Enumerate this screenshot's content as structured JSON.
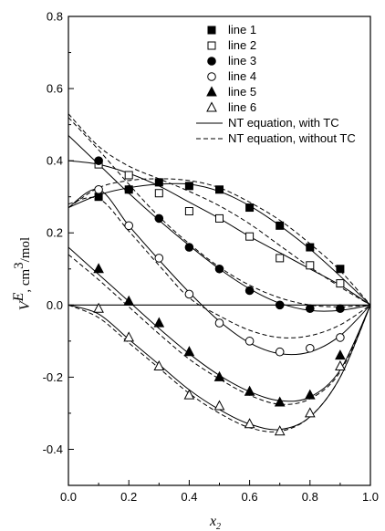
{
  "chart_data": {
    "type": "scatter",
    "xlabel": "x",
    "xlabel_sub": "2",
    "ylabel_var": "V",
    "ylabel_sup": "E",
    "ylabel_unit_pre": ", cm",
    "ylabel_unit_sup": "3",
    "ylabel_unit_post": "/mol",
    "xlim": [
      0.0,
      1.0
    ],
    "ylim": [
      -0.5,
      0.8
    ],
    "xticks": [
      "0.0",
      "0.2",
      "0.4",
      "0.6",
      "0.8",
      "1.0"
    ],
    "yticks": [
      "-0.4",
      "-0.2",
      "0.0",
      "0.2",
      "0.4",
      "0.6",
      "0.8"
    ],
    "legend_position": "top-right",
    "series": [
      {
        "name": "line 1",
        "marker": "square-filled",
        "x": [
          0.1,
          0.2,
          0.3,
          0.4,
          0.5,
          0.6,
          0.7,
          0.8,
          0.9
        ],
        "y": [
          0.3,
          0.32,
          0.34,
          0.33,
          0.32,
          0.27,
          0.22,
          0.16,
          0.1
        ]
      },
      {
        "name": "line 2",
        "marker": "square-open",
        "x": [
          0.1,
          0.2,
          0.3,
          0.4,
          0.5,
          0.6,
          0.7,
          0.8,
          0.9
        ],
        "y": [
          0.39,
          0.36,
          0.31,
          0.26,
          0.24,
          0.19,
          0.13,
          0.11,
          0.06
        ]
      },
      {
        "name": "line 3",
        "marker": "circle-filled",
        "x": [
          0.1,
          0.2,
          0.3,
          0.4,
          0.5,
          0.6,
          0.7,
          0.8,
          0.9
        ],
        "y": [
          0.4,
          0.32,
          0.24,
          0.16,
          0.1,
          0.04,
          0.0,
          -0.01,
          -0.01
        ]
      },
      {
        "name": "line 4",
        "marker": "circle-open",
        "x": [
          0.1,
          0.2,
          0.3,
          0.4,
          0.5,
          0.6,
          0.7,
          0.8,
          0.9
        ],
        "y": [
          0.32,
          0.22,
          0.13,
          0.03,
          -0.05,
          -0.1,
          -0.13,
          -0.12,
          -0.09
        ]
      },
      {
        "name": "line 5",
        "marker": "triangle-filled",
        "x": [
          0.1,
          0.2,
          0.3,
          0.4,
          0.5,
          0.6,
          0.7,
          0.8,
          0.9
        ],
        "y": [
          0.1,
          0.01,
          -0.05,
          -0.13,
          -0.2,
          -0.24,
          -0.27,
          -0.25,
          -0.14
        ]
      },
      {
        "name": "line 6",
        "marker": "triangle-open",
        "x": [
          0.1,
          0.2,
          0.3,
          0.4,
          0.5,
          0.6,
          0.7,
          0.8,
          0.9
        ],
        "y": [
          -0.01,
          -0.09,
          -0.17,
          -0.25,
          -0.28,
          -0.33,
          -0.35,
          -0.3,
          -0.17
        ]
      }
    ],
    "curves": [
      {
        "name": "NT equation, with TC",
        "style": "solid",
        "lines": [
          {
            "x": [
              0,
              0.1,
              0.2,
              0.3,
              0.4,
              0.5,
              0.6,
              0.7,
              0.8,
              0.9,
              1.0
            ],
            "y": [
              0.27,
              0.305,
              0.325,
              0.335,
              0.335,
              0.315,
              0.275,
              0.22,
              0.155,
              0.08,
              0.0
            ]
          },
          {
            "x": [
              0,
              0.1,
              0.2,
              0.3,
              0.4,
              0.5,
              0.6,
              0.7,
              0.8,
              0.9,
              1.0
            ],
            "y": [
              0.4,
              0.39,
              0.365,
              0.33,
              0.285,
              0.24,
              0.19,
              0.145,
              0.1,
              0.055,
              0.0
            ]
          },
          {
            "x": [
              0,
              0.1,
              0.2,
              0.3,
              0.4,
              0.5,
              0.6,
              0.7,
              0.8,
              0.9,
              1.0
            ],
            "y": [
              0.47,
              0.39,
              0.31,
              0.235,
              0.165,
              0.1,
              0.045,
              0.005,
              -0.015,
              -0.015,
              0.0
            ]
          },
          {
            "x": [
              0,
              0.1,
              0.2,
              0.3,
              0.4,
              0.5,
              0.6,
              0.7,
              0.8,
              0.9,
              1.0
            ],
            "y": [
              0.27,
              0.32,
              0.22,
              0.125,
              0.035,
              -0.045,
              -0.105,
              -0.135,
              -0.13,
              -0.085,
              0.0
            ]
          },
          {
            "x": [
              0,
              0.1,
              0.2,
              0.3,
              0.4,
              0.5,
              0.6,
              0.7,
              0.8,
              0.9,
              1.0
            ],
            "y": [
              0.16,
              0.085,
              0.01,
              -0.065,
              -0.135,
              -0.195,
              -0.24,
              -0.265,
              -0.255,
              -0.18,
              0.0
            ]
          },
          {
            "x": [
              0,
              0.1,
              0.2,
              0.3,
              0.4,
              0.5,
              0.6,
              0.7,
              0.8,
              0.9,
              1.0
            ],
            "y": [
              0.0,
              -0.025,
              -0.095,
              -0.165,
              -0.235,
              -0.29,
              -0.33,
              -0.345,
              -0.31,
              -0.2,
              0.0
            ]
          }
        ]
      },
      {
        "name": "NT equation, without TC",
        "style": "dashed",
        "lines": [
          {
            "x": [
              0,
              0.1,
              0.2,
              0.3,
              0.4,
              0.5,
              0.6,
              0.7,
              0.8,
              0.9,
              1.0
            ],
            "y": [
              0.27,
              0.325,
              0.345,
              0.35,
              0.345,
              0.325,
              0.285,
              0.235,
              0.17,
              0.095,
              0.0
            ]
          },
          {
            "x": [
              0,
              0.1,
              0.2,
              0.3,
              0.4,
              0.5,
              0.6,
              0.7,
              0.8,
              0.9,
              1.0
            ],
            "y": [
              0.53,
              0.44,
              0.385,
              0.35,
              0.315,
              0.275,
              0.225,
              0.165,
              0.105,
              0.05,
              0.0
            ]
          },
          {
            "x": [
              0,
              0.1,
              0.2,
              0.3,
              0.4,
              0.5,
              0.6,
              0.7,
              0.8,
              0.9,
              1.0
            ],
            "y": [
              0.52,
              0.43,
              0.335,
              0.245,
              0.17,
              0.105,
              0.055,
              0.02,
              0.0,
              -0.005,
              0.0
            ]
          },
          {
            "x": [
              0,
              0.1,
              0.2,
              0.3,
              0.4,
              0.5,
              0.6,
              0.7,
              0.8,
              0.9,
              1.0
            ],
            "y": [
              0.28,
              0.295,
              0.205,
              0.11,
              0.02,
              -0.03,
              -0.07,
              -0.09,
              -0.085,
              -0.055,
              0.0
            ]
          },
          {
            "x": [
              0,
              0.1,
              0.2,
              0.3,
              0.4,
              0.5,
              0.6,
              0.7,
              0.8,
              0.9,
              1.0
            ],
            "y": [
              0.14,
              0.07,
              -0.005,
              -0.08,
              -0.15,
              -0.205,
              -0.25,
              -0.275,
              -0.26,
              -0.185,
              0.0
            ]
          },
          {
            "x": [
              0,
              0.1,
              0.2,
              0.3,
              0.4,
              0.5,
              0.6,
              0.7,
              0.8,
              0.9,
              1.0
            ],
            "y": [
              0.0,
              -0.035,
              -0.105,
              -0.175,
              -0.245,
              -0.3,
              -0.34,
              -0.35,
              -0.31,
              -0.2,
              0.0
            ]
          }
        ]
      }
    ]
  }
}
